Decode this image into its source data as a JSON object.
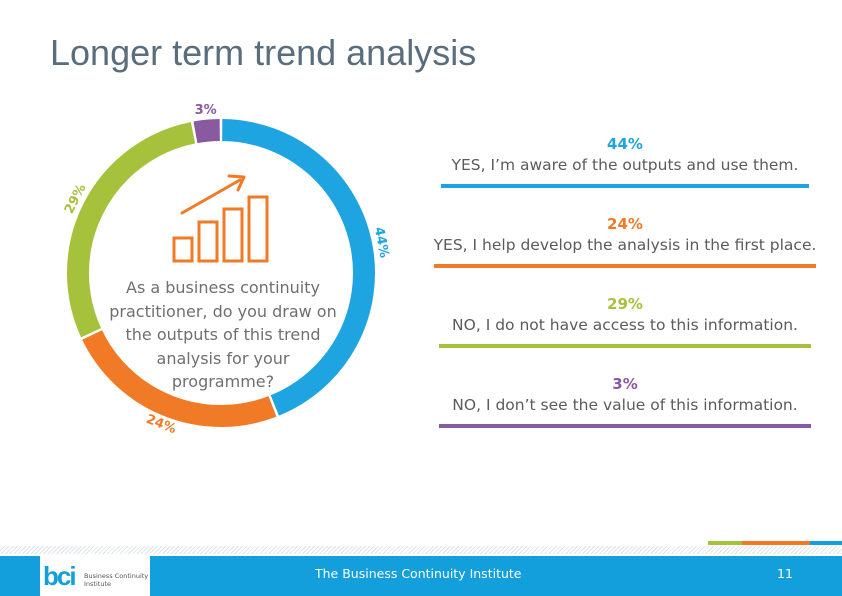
{
  "slide": {
    "title": "Longer term trend analysis",
    "question": "As a business continuity practitioner, do you draw on the outputs of this trend analysis for your programme?"
  },
  "chart_data": {
    "type": "pie",
    "donut": true,
    "categories": [
      "YES, I’m aware of the outputs and use them.",
      "YES, I help develop the analysis in the first place.",
      "NO, I do not have access to this information.",
      "NO, I don’t see the value of this information."
    ],
    "values": [
      44,
      24,
      29,
      3
    ],
    "labels": [
      "44%",
      "24%",
      "29%",
      "3%"
    ],
    "colors": [
      "#1ea4e0",
      "#f07a25",
      "#a6c23d",
      "#8a5aa0"
    ]
  },
  "legend": [
    {
      "pct": "44%",
      "text": "YES, I’m aware of the outputs and use them.",
      "color": "#1ea4e0"
    },
    {
      "pct": "24%",
      "text": "YES, I help develop the analysis in the first place.",
      "color": "#f07a25"
    },
    {
      "pct": "29%",
      "text": "NO, I do not have access to this information.",
      "color": "#a6c23d"
    },
    {
      "pct": "3%",
      "text": "NO, I don’t see the value of this information.",
      "color": "#8a5aa0"
    }
  ],
  "icon": {
    "name": "growth-bar-chart-icon",
    "color": "#f07a25"
  },
  "footer": {
    "logo_mark": "bci",
    "logo_text": "Business Continuity Institute",
    "org": "The Business Continuity Institute",
    "page": "11",
    "stripe_colors": [
      "#a6c23d",
      "#f07a25",
      "#139fdc"
    ]
  }
}
